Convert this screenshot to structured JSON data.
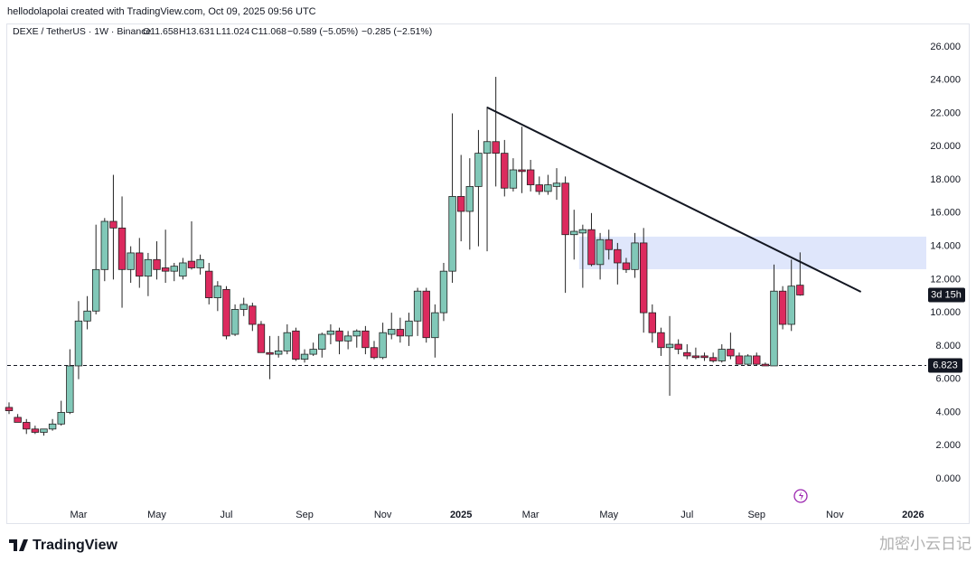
{
  "chart_data": {
    "type": "candlestick",
    "attribution": "hellodolapolai created with TradingView.com, Oct 09, 2025 09:56 UTC",
    "legend": {
      "symbol": "DEXE / TetherUS · 1W · Binance",
      "open": "O11.658",
      "high": "H13.631",
      "low": "L11.024",
      "close": "C11.068",
      "change": "−0.589 (−5.05%)",
      "change2": "−0.285 (−2.51%)"
    },
    "categories": [
      null,
      null,
      null,
      null,
      null,
      null,
      null,
      null,
      "Mar",
      null,
      null,
      null,
      null,
      null,
      null,
      null,
      null,
      "May",
      null,
      null,
      null,
      null,
      null,
      null,
      null,
      "Jul",
      null,
      null,
      null,
      null,
      null,
      null,
      null,
      null,
      "Sep",
      null,
      null,
      null,
      null,
      null,
      null,
      null,
      null,
      "Nov",
      null,
      null,
      null,
      null,
      null,
      null,
      null,
      null,
      "2025",
      null,
      null,
      null,
      null,
      null,
      null,
      null,
      "Mar",
      null,
      null,
      null,
      null,
      null,
      null,
      null,
      null,
      "May",
      null,
      null,
      null,
      null,
      null,
      null,
      null,
      null,
      "Jul",
      null,
      null,
      null,
      null,
      null,
      null,
      null,
      "Sep",
      null,
      null,
      null,
      null,
      null,
      null,
      null,
      null,
      "Nov",
      null,
      null,
      null,
      null,
      null,
      null,
      null,
      null,
      "2026",
      null
    ],
    "open": [
      4.3,
      3.7,
      3.4,
      3.0,
      2.8,
      3.0,
      3.3,
      4.0,
      6.8,
      9.5,
      10.1,
      12.6,
      15.5,
      15.1,
      12.6,
      13.6,
      12.2,
      13.2,
      12.7,
      12.5,
      12.2,
      13.1,
      12.7,
      12.5,
      10.9,
      11.4,
      8.7,
      10.2,
      10.4,
      9.3,
      7.6,
      7.5,
      7.7,
      8.9,
      7.2,
      7.5,
      7.8,
      8.7,
      8.9,
      8.3,
      8.6,
      8.9,
      7.9,
      7.3,
      8.7,
      9.0,
      8.6,
      9.5,
      11.3,
      8.5,
      10.0,
      12.5,
      17.0,
      16.1,
      17.6,
      19.6,
      20.3,
      19.6,
      17.5,
      18.6,
      18.6,
      17.7,
      17.3,
      17.6,
      17.8,
      14.7,
      14.8,
      15.0,
      12.9,
      14.4,
      13.8,
      13.0,
      12.6,
      14.2,
      10.0,
      8.8,
      7.9,
      8.1,
      7.6,
      7.4,
      7.4,
      7.3,
      7.1,
      7.8,
      7.4,
      6.9,
      7.4,
      6.9,
      6.8,
      11.3,
      9.3,
      11.658,
      null,
      null,
      null,
      null,
      null,
      null,
      null,
      null,
      null,
      null,
      null,
      null,
      null,
      null
    ],
    "high": [
      4.6,
      3.9,
      3.6,
      3.2,
      3.0,
      3.6,
      4.7,
      7.8,
      10.7,
      11.0,
      15.3,
      15.7,
      18.3,
      17.0,
      14.0,
      14.5,
      13.6,
      14.3,
      15.0,
      13.0,
      13.3,
      15.5,
      13.5,
      13.0,
      11.9,
      11.6,
      10.5,
      10.9,
      10.6,
      9.5,
      8.6,
      8.6,
      9.3,
      9.1,
      7.8,
      8.2,
      8.8,
      9.3,
      9.1,
      8.9,
      9.0,
      9.2,
      8.3,
      9.4,
      10.0,
      9.7,
      10.0,
      11.5,
      11.5,
      10.5,
      13.0,
      22.0,
      19.5,
      19.3,
      21.0,
      22.4,
      24.2,
      20.4,
      19.3,
      21.2,
      19.2,
      18.2,
      18.3,
      18.7,
      18.2,
      16.2,
      15.3,
      16.0,
      14.8,
      15.0,
      14.2,
      13.3,
      14.8,
      15.1,
      10.5,
      9.1,
      9.8,
      8.4,
      8.1,
      7.9,
      7.6,
      7.6,
      8.1,
      8.8,
      7.6,
      7.5,
      7.6,
      7.0,
      12.9,
      11.6,
      13.2,
      13.631,
      null,
      null,
      null,
      null,
      null,
      null,
      null,
      null,
      null,
      null,
      null,
      null,
      null,
      null
    ],
    "low": [
      3.9,
      3.4,
      2.7,
      2.7,
      2.6,
      2.9,
      3.2,
      3.9,
      6.0,
      9.0,
      9.9,
      11.9,
      12.0,
      10.3,
      11.8,
      11.5,
      11.0,
      12.0,
      11.8,
      11.9,
      12.0,
      12.6,
      12.3,
      10.5,
      10.1,
      8.4,
      8.6,
      9.8,
      8.9,
      7.6,
      6.0,
      7.3,
      7.5,
      7.1,
      7.0,
      7.4,
      7.3,
      8.1,
      7.5,
      7.8,
      7.9,
      7.5,
      7.2,
      7.2,
      8.4,
      8.2,
      8.0,
      8.6,
      8.2,
      7.3,
      9.5,
      11.8,
      14.3,
      13.8,
      14.0,
      13.7,
      17.6,
      17.0,
      17.3,
      17.2,
      17.3,
      17.1,
      17.1,
      16.8,
      11.2,
      13.2,
      11.5,
      12.8,
      12.0,
      13.2,
      11.7,
      12.4,
      12.1,
      8.8,
      8.2,
      7.4,
      5.0,
      7.5,
      7.2,
      7.2,
      7.1,
      7.0,
      7.0,
      7.2,
      6.9,
      6.8,
      6.8,
      6.8,
      6.8,
      9.0,
      8.9,
      11.024,
      null,
      null,
      null,
      null,
      null,
      null,
      null,
      null,
      null,
      null,
      null,
      null,
      null,
      null
    ],
    "close": [
      4.1,
      3.4,
      3.0,
      2.8,
      3.0,
      3.3,
      4.0,
      6.8,
      9.5,
      10.1,
      12.6,
      15.5,
      15.1,
      12.6,
      13.6,
      12.2,
      13.2,
      12.6,
      12.5,
      12.8,
      13.0,
      12.7,
      13.2,
      10.9,
      11.6,
      8.6,
      10.2,
      10.5,
      9.3,
      7.6,
      7.5,
      7.7,
      8.8,
      7.2,
      7.5,
      7.8,
      8.7,
      8.9,
      8.3,
      8.6,
      8.9,
      7.9,
      7.3,
      8.8,
      9.0,
      8.6,
      9.5,
      11.3,
      8.5,
      10.0,
      12.5,
      17.0,
      16.1,
      17.6,
      19.6,
      20.3,
      19.6,
      17.5,
      18.6,
      18.5,
      17.7,
      17.3,
      17.7,
      17.8,
      14.7,
      14.9,
      15.0,
      12.9,
      14.4,
      13.8,
      13.0,
      12.6,
      14.2,
      10.0,
      8.8,
      7.9,
      8.1,
      7.8,
      7.4,
      7.3,
      7.3,
      7.1,
      7.8,
      7.4,
      6.9,
      7.4,
      6.9,
      6.8,
      11.3,
      9.3,
      11.6,
      11.068,
      null,
      null,
      null,
      null,
      null,
      null,
      null,
      null,
      null,
      null,
      null,
      null,
      null,
      null
    ],
    "up_color": "#81c8b8",
    "down_color": "#dc2a5e",
    "ylim": [
      -2.72,
      26.65
    ],
    "yticks": [
      {
        "value": 0,
        "label": "0.000"
      },
      {
        "value": 2,
        "label": "2.000"
      },
      {
        "value": 4,
        "label": "4.000"
      },
      {
        "value": 6,
        "label": "6.000"
      },
      {
        "value": 8,
        "label": "8.000"
      },
      {
        "value": 10,
        "label": "10.000"
      },
      {
        "value": 12,
        "label": "12.000"
      },
      {
        "value": 14,
        "label": "14.000"
      },
      {
        "value": 16,
        "label": "16.000"
      },
      {
        "value": 18,
        "label": "18.000"
      },
      {
        "value": 20,
        "label": "20.000"
      },
      {
        "value": 22,
        "label": "22.000"
      },
      {
        "value": 24,
        "label": "24.000"
      },
      {
        "value": 26,
        "label": "26.000"
      }
    ],
    "grid": false,
    "horizontal_line": 6.823,
    "trendline": {
      "x": [
        55,
        98
      ],
      "y": [
        22.36,
        11.26
      ]
    },
    "zone": {
      "x_start": 66,
      "y": [
        12.62,
        14.58
      ]
    },
    "countdown": "3d 15h",
    "brand": "TradingView",
    "watermark": "加密小云日记"
  }
}
